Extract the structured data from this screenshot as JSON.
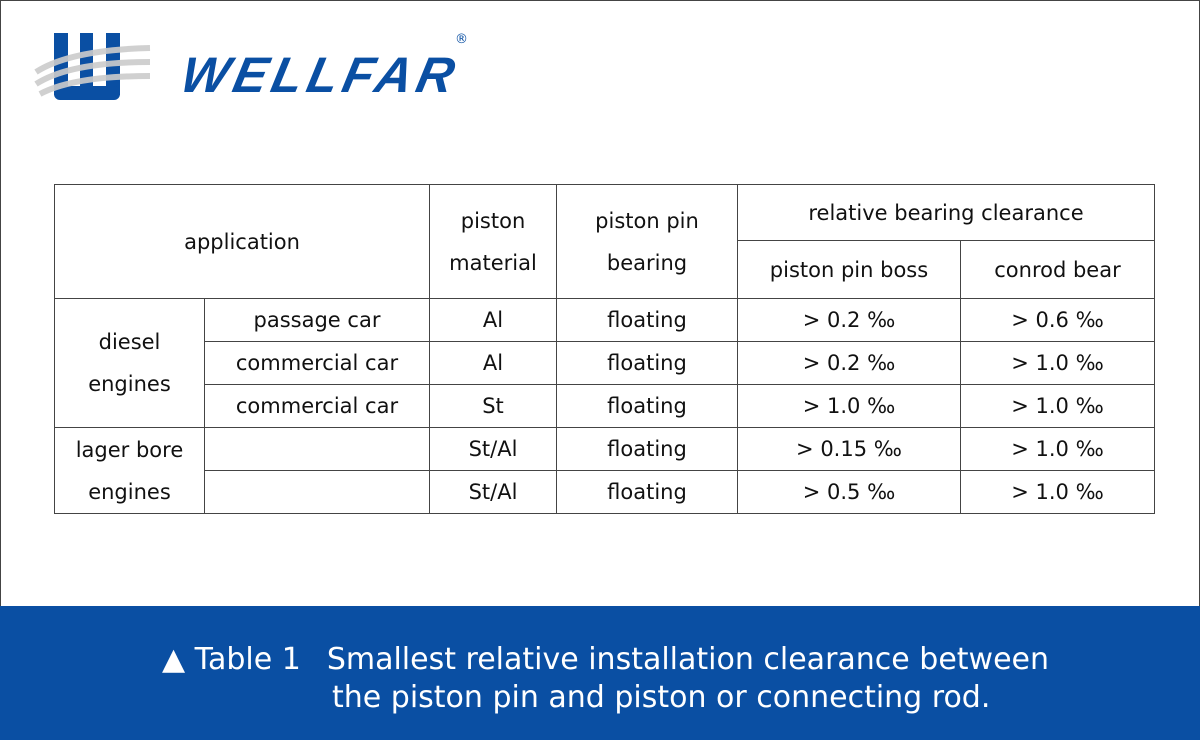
{
  "logo": {
    "text": "WELLFAR",
    "registered": "®",
    "brand_color": "#0a4fa3"
  },
  "table": {
    "headers": {
      "application": "application",
      "piston_material": [
        "piston",
        "material"
      ],
      "piston_pin_bearing": [
        "piston pin",
        "bearing"
      ],
      "relative_bearing_clearance": "relative bearing clearance",
      "piston_pin_boss": "piston pin boss",
      "conrod_bear": "conrod bear"
    },
    "groups": [
      {
        "label": [
          "diesel",
          "engines"
        ],
        "rows": [
          {
            "application": "passage car",
            "material": "Al",
            "bearing": "floating",
            "boss": "> 0.2 ‰",
            "conrod": "> 0.6 ‰"
          },
          {
            "application": "commercial car",
            "material": "Al",
            "bearing": "floating",
            "boss": "> 0.2 ‰",
            "conrod": "> 1.0 ‰"
          },
          {
            "application": "commercial car",
            "material": "St",
            "bearing": "floating",
            "boss": "> 1.0 ‰",
            "conrod": "> 1.0 ‰"
          }
        ]
      },
      {
        "label": [
          "lager bore",
          "engines"
        ],
        "rows": [
          {
            "application": "",
            "material": "St/Al",
            "bearing": "floating",
            "boss": "> 0.15 ‰",
            "conrod": "> 1.0 ‰"
          },
          {
            "application": "",
            "material": "St/Al",
            "bearing": "floating",
            "boss": "> 0.5 ‰",
            "conrod": "> 1.0 ‰"
          }
        ]
      }
    ]
  },
  "caption": {
    "marker": "▲ Table 1",
    "line1": "Smallest relative installation clearance between",
    "line2": "the piston pin and piston or connecting rod.",
    "background": "#0a4fa3"
  }
}
